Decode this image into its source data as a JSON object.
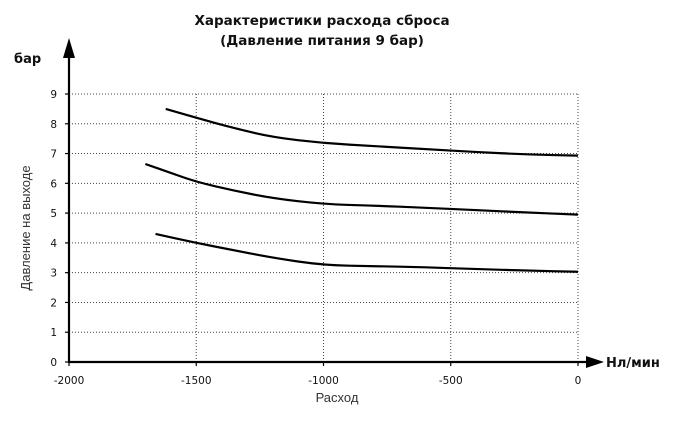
{
  "chart_data": {
    "type": "line",
    "title": [
      "Характеристики расхода сброса",
      "(Давление питания 9 бар)"
    ],
    "xlabel": "Расход",
    "ylabel": "Давление на выходе",
    "x_unit": "Нл/мин",
    "y_unit": "бар",
    "xlim": [
      -2000,
      0
    ],
    "ylim": [
      0,
      9
    ],
    "x_ticks": [
      -2000,
      -1500,
      -1000,
      -500,
      0
    ],
    "x_tick_labels": [
      "-2000",
      "-1500",
      "-1000",
      "-500",
      "0"
    ],
    "y_ticks": [
      0,
      1,
      2,
      3,
      4,
      5,
      6,
      7,
      8,
      9
    ],
    "y_tick_labels": [
      "0",
      "1",
      "2",
      "3",
      "4",
      "5",
      "6",
      "7",
      "8",
      "9"
    ],
    "grid": true,
    "series": [
      {
        "x": [
          -1620,
          -1500,
          -1350,
          -1200,
          -1000,
          -800,
          -600,
          -400,
          -200,
          0
        ],
        "y": [
          8.5,
          8.2,
          7.85,
          7.55,
          7.35,
          7.25,
          7.15,
          7.05,
          6.97,
          6.93
        ]
      },
      {
        "x": [
          -1700,
          -1600,
          -1500,
          -1350,
          -1200,
          -1000,
          -800,
          -600,
          -400,
          -200,
          0
        ],
        "y": [
          6.65,
          6.35,
          6.05,
          5.75,
          5.5,
          5.3,
          5.25,
          5.18,
          5.1,
          5.02,
          4.95
        ]
      },
      {
        "x": [
          -1660,
          -1500,
          -1350,
          -1200,
          -1000,
          -800,
          -600,
          -400,
          -200,
          0
        ],
        "y": [
          4.3,
          4.0,
          3.75,
          3.5,
          3.25,
          3.22,
          3.18,
          3.12,
          3.07,
          3.03
        ]
      }
    ]
  }
}
